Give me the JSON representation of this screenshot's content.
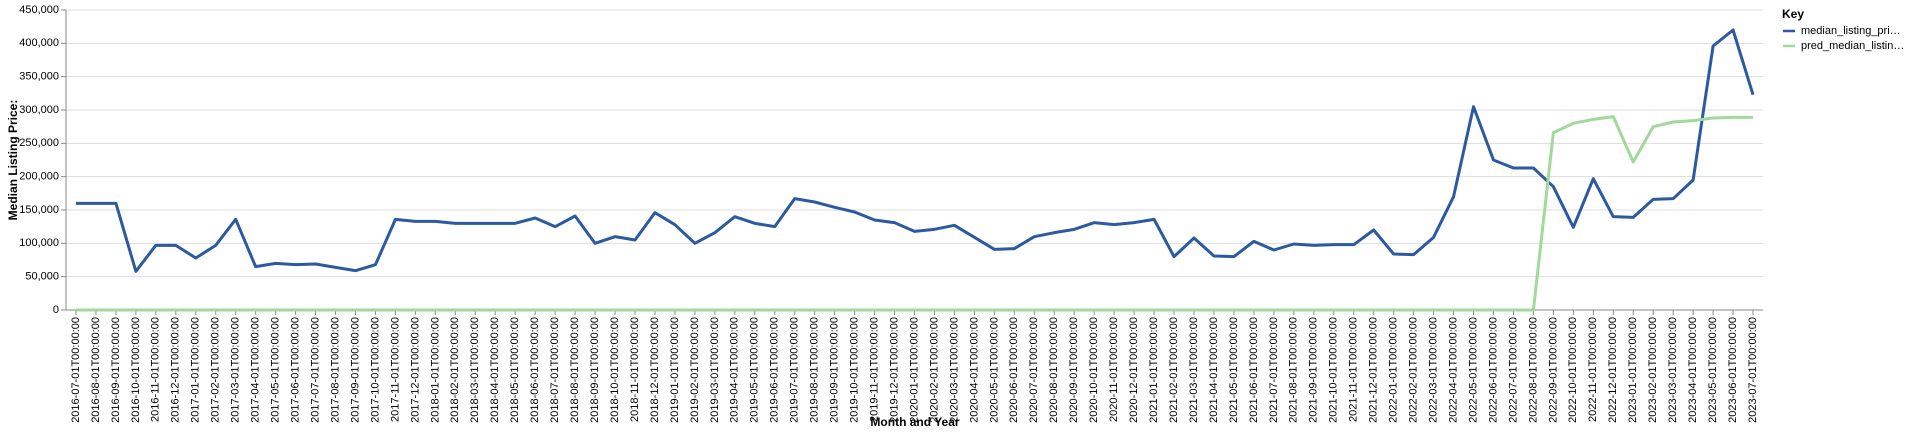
{
  "chart_data": {
    "type": "line",
    "y_label": "Median Listing Price:",
    "x_label": "Month and Year",
    "legend_title": "Key",
    "legend_position": "right",
    "grid": true,
    "categories": [
      "2016-07-01T00:00:00",
      "2016-08-01T00:00:00",
      "2016-09-01T00:00:00",
      "2016-10-01T00:00:00",
      "2016-11-01T00:00:00",
      "2016-12-01T00:00:00",
      "2017-01-01T00:00:00",
      "2017-02-01T00:00:00",
      "2017-03-01T00:00:00",
      "2017-04-01T00:00:00",
      "2017-05-01T00:00:00",
      "2017-06-01T00:00:00",
      "2017-07-01T00:00:00",
      "2017-08-01T00:00:00",
      "2017-09-01T00:00:00",
      "2017-10-01T00:00:00",
      "2017-11-01T00:00:00",
      "2017-12-01T00:00:00",
      "2018-01-01T00:00:00",
      "2018-02-01T00:00:00",
      "2018-03-01T00:00:00",
      "2018-04-01T00:00:00",
      "2018-05-01T00:00:00",
      "2018-06-01T00:00:00",
      "2018-07-01T00:00:00",
      "2018-08-01T00:00:00",
      "2018-09-01T00:00:00",
      "2018-10-01T00:00:00",
      "2018-11-01T00:00:00",
      "2018-12-01T00:00:00",
      "2019-01-01T00:00:00",
      "2019-02-01T00:00:00",
      "2019-03-01T00:00:00",
      "2019-04-01T00:00:00",
      "2019-05-01T00:00:00",
      "2019-06-01T00:00:00",
      "2019-07-01T00:00:00",
      "2019-08-01T00:00:00",
      "2019-09-01T00:00:00",
      "2019-10-01T00:00:00",
      "2019-11-01T00:00:00",
      "2019-12-01T00:00:00",
      "2020-01-01T00:00:00",
      "2020-02-01T00:00:00",
      "2020-03-01T00:00:00",
      "2020-04-01T00:00:00",
      "2020-05-01T00:00:00",
      "2020-06-01T00:00:00",
      "2020-07-01T00:00:00",
      "2020-08-01T00:00:00",
      "2020-09-01T00:00:00",
      "2020-10-01T00:00:00",
      "2020-11-01T00:00:00",
      "2020-12-01T00:00:00",
      "2021-01-01T00:00:00",
      "2021-02-01T00:00:00",
      "2021-03-01T00:00:00",
      "2021-04-01T00:00:00",
      "2021-05-01T00:00:00",
      "2021-06-01T00:00:00",
      "2021-07-01T00:00:00",
      "2021-08-01T00:00:00",
      "2021-09-01T00:00:00",
      "2021-10-01T00:00:00",
      "2021-11-01T00:00:00",
      "2021-12-01T00:00:00",
      "2022-01-01T00:00:00",
      "2022-02-01T00:00:00",
      "2022-03-01T00:00:00",
      "2022-04-01T00:00:00",
      "2022-05-01T00:00:00",
      "2022-06-01T00:00:00",
      "2022-07-01T00:00:00",
      "2022-08-01T00:00:00",
      "2022-09-01T00:00:00",
      "2022-10-01T00:00:00",
      "2022-11-01T00:00:00",
      "2022-12-01T00:00:00",
      "2023-01-01T00:00:00",
      "2023-02-01T00:00:00",
      "2023-03-01T00:00:00",
      "2023-04-01T00:00:00",
      "2023-05-01T00:00:00",
      "2023-06-01T00:00:00",
      "2023-07-01T00:00:00"
    ],
    "series": [
      {
        "name": "median_listing_pri…",
        "color": "#2c5aa0",
        "values": [
          160000,
          160000,
          160000,
          58000,
          97000,
          97000,
          78000,
          97000,
          136000,
          65000,
          70000,
          68000,
          69000,
          64000,
          59000,
          68000,
          136000,
          133000,
          133000,
          130000,
          130000,
          130000,
          130000,
          138000,
          125000,
          141000,
          100000,
          110000,
          105000,
          146000,
          128000,
          100000,
          116000,
          140000,
          130000,
          125000,
          167000,
          162000,
          154000,
          147000,
          135000,
          131000,
          118000,
          121000,
          127000,
          109000,
          91000,
          92000,
          110000,
          116000,
          121000,
          131000,
          128000,
          131000,
          136000,
          80000,
          108000,
          81000,
          80000,
          103000,
          90000,
          99000,
          97000,
          98000,
          98000,
          120000,
          84000,
          83000,
          109000,
          170000,
          305000,
          225000,
          213000,
          213000,
          185000,
          124000,
          197000,
          140000,
          139000,
          166000,
          167000,
          195000,
          396000,
          420000,
          323000
        ]
      },
      {
        "name": "pred_median_listin…",
        "color": "#a1d99b",
        "values": [
          0,
          0,
          0,
          0,
          0,
          0,
          0,
          0,
          0,
          0,
          0,
          0,
          0,
          0,
          0,
          0,
          0,
          0,
          0,
          0,
          0,
          0,
          0,
          0,
          0,
          0,
          0,
          0,
          0,
          0,
          0,
          0,
          0,
          0,
          0,
          0,
          0,
          0,
          0,
          0,
          0,
          0,
          0,
          0,
          0,
          0,
          0,
          0,
          0,
          0,
          0,
          0,
          0,
          0,
          0,
          0,
          0,
          0,
          0,
          0,
          0,
          0,
          0,
          0,
          0,
          0,
          0,
          0,
          0,
          0,
          0,
          0,
          0,
          0,
          266000,
          280000,
          286000,
          290000,
          222000,
          275000,
          282000,
          284000,
          288000,
          289000,
          289000
        ]
      }
    ],
    "ylim": [
      0,
      450000
    ],
    "yticks": [
      0,
      {
        "value": 50000,
        "label": "50,000"
      },
      {
        "value": 100000,
        "label": "100,000"
      },
      {
        "value": 150000,
        "label": "150,000"
      },
      {
        "value": 200000,
        "label": "200,000"
      },
      {
        "value": 250000,
        "label": "250,000"
      },
      {
        "value": 300000,
        "label": "300,000"
      },
      {
        "value": 350000,
        "label": "350,000"
      },
      {
        "value": 400000,
        "label": "400,000"
      },
      {
        "value": 450000,
        "label": "450,000"
      }
    ]
  }
}
